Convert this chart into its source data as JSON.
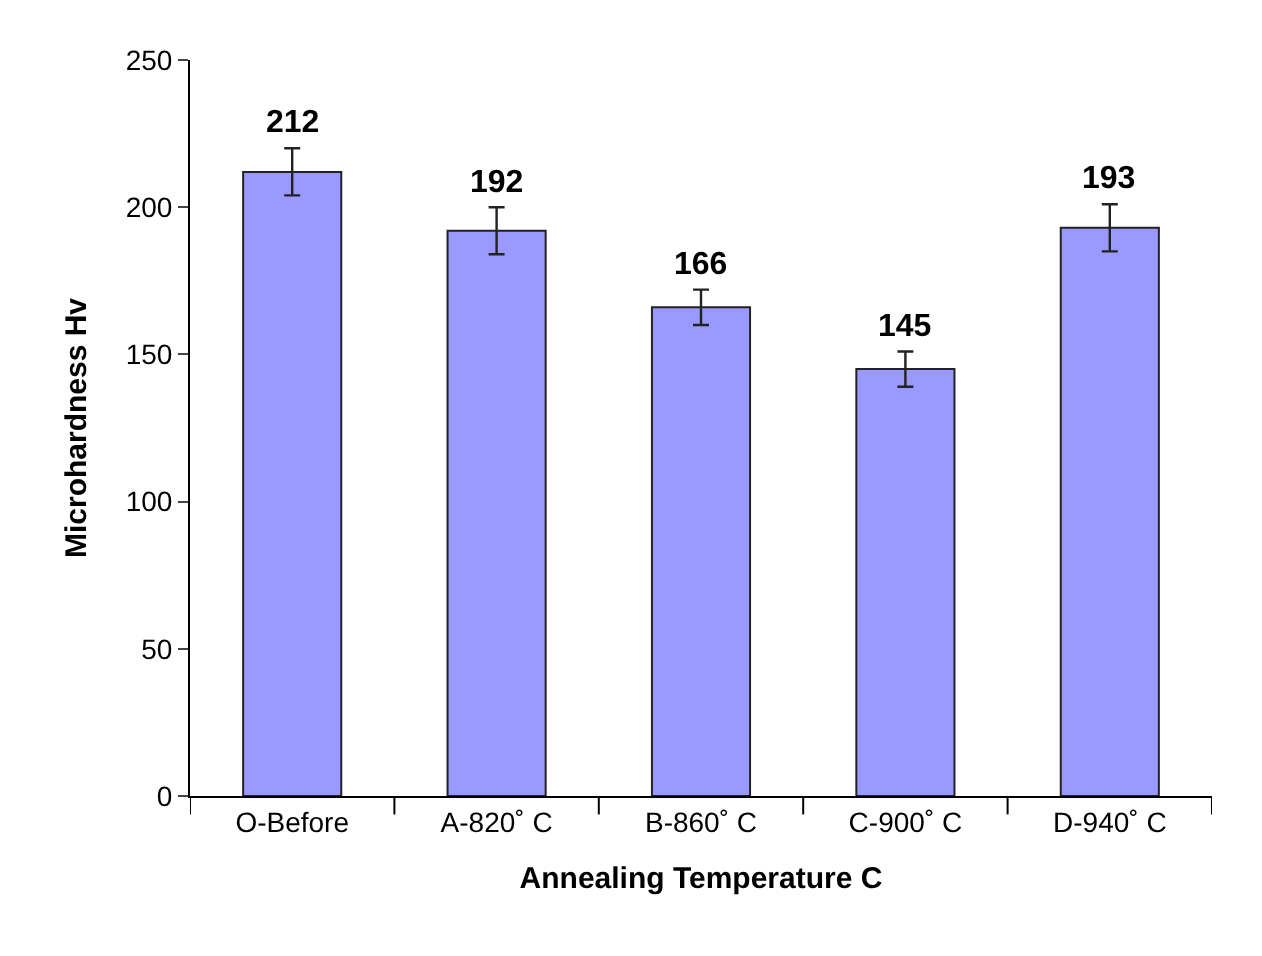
{
  "chart_data": {
    "type": "bar",
    "xlabel": "Annealing Temperature C",
    "ylabel": "Microhardness Hv",
    "categories": [
      "O-Before",
      "A-820˚ C",
      "B-860˚ C",
      "C-900˚ C",
      "D-940˚ C"
    ],
    "values": [
      212,
      192,
      166,
      145,
      193
    ],
    "errors": [
      8,
      8,
      6,
      6,
      8
    ],
    "color": "#9999ff",
    "ylim": [
      0,
      250
    ],
    "yticks": [
      0,
      50,
      100,
      150,
      200,
      250
    ],
    "data_labels": true
  }
}
